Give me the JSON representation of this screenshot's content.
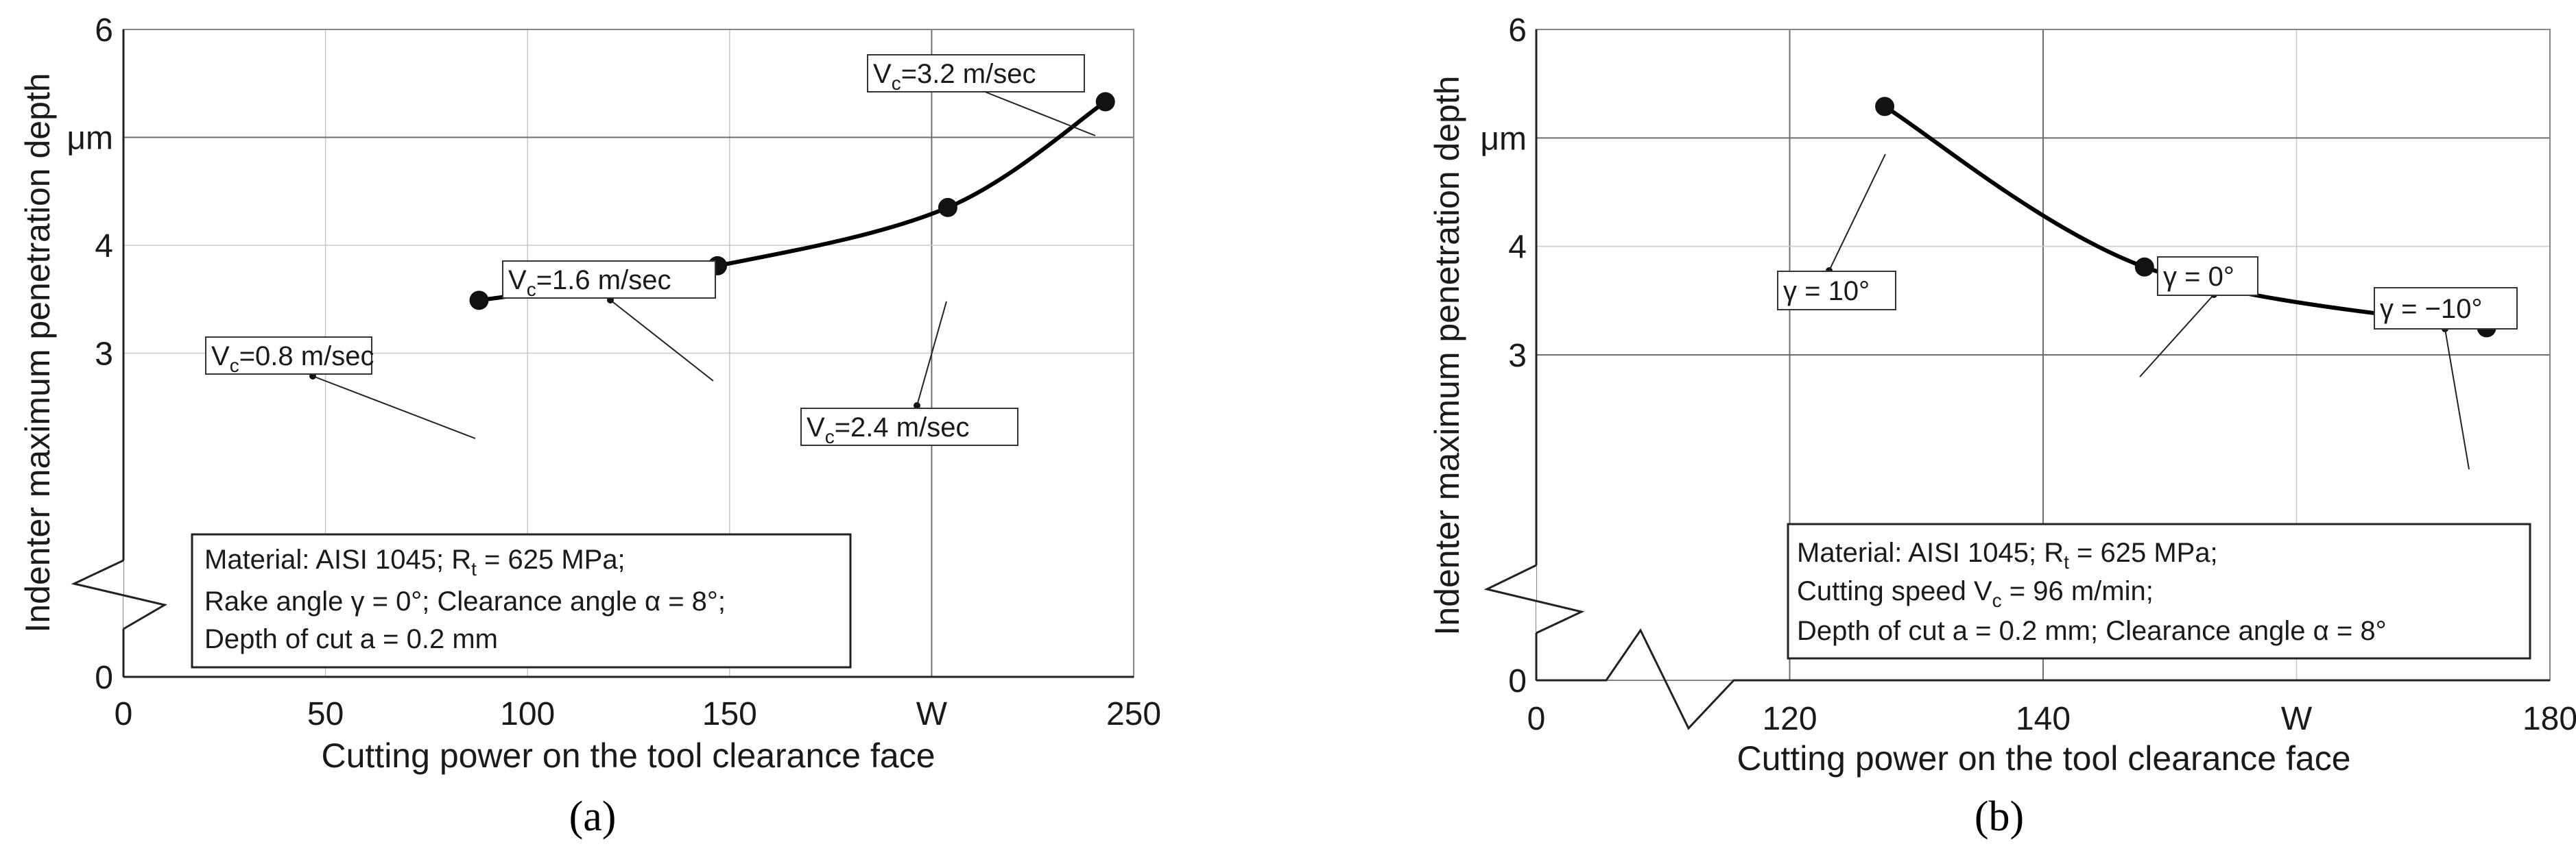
{
  "chart_data": [
    {
      "panel": "a",
      "type": "line",
      "caption": "(a)",
      "xlabel": "Cutting power on the tool clearance face",
      "xlabel_unit": "W",
      "ylabel": "Indenter maximum penetration depth",
      "ylabel_unit": "μm",
      "xlim": [
        0,
        250
      ],
      "ylim": [
        0,
        6
      ],
      "axis_break": true,
      "x_ticks": [
        "0",
        "50",
        "100",
        "150",
        "W",
        "250"
      ],
      "x_tick_values": [
        0,
        50,
        100,
        150,
        200,
        250
      ],
      "y_ticks": [
        "0",
        "3",
        "4",
        "μm",
        "6"
      ],
      "y_tick_values": [
        0,
        3,
        4,
        5,
        6
      ],
      "series": [
        {
          "name": "Vc",
          "x": [
            88,
            147,
            204,
            243
          ],
          "y": [
            3.49,
            3.81,
            4.35,
            5.33
          ]
        }
      ],
      "annotations": [
        {
          "text": "V",
          "sub": "c",
          "rest": "=0.8 m/sec"
        },
        {
          "text": "V",
          "sub": "c",
          "rest": "=1.6 m/sec"
        },
        {
          "text": "V",
          "sub": "c",
          "rest": "=2.4 m/sec"
        },
        {
          "text": "V",
          "sub": "c",
          "rest": "=3.2 m/sec"
        }
      ],
      "info": [
        {
          "pre": "Material: AISI 1045; R",
          "sub": "t",
          "post": " = 625 MPa;"
        },
        {
          "pre": "Rake angle γ = 0°; Clearance angle α = 8°;",
          "sub": "",
          "post": ""
        },
        {
          "pre": "Depth of cut a = 0.2 mm",
          "sub": "",
          "post": ""
        }
      ]
    },
    {
      "panel": "b",
      "type": "line",
      "caption": "(b)",
      "xlabel": "Cutting power on the tool clearance face",
      "xlabel_unit": "W",
      "ylabel": "Indenter maximum penetration depth",
      "ylabel_unit": "μm",
      "xlim": [
        100,
        180
      ],
      "ylim": [
        0,
        6
      ],
      "axis_break": true,
      "x_ticks": [
        "0",
        "120",
        "140",
        "W",
        "180"
      ],
      "x_tick_values": [
        100,
        120,
        140,
        160,
        180
      ],
      "y_ticks": [
        "0",
        "3",
        "4",
        "μm",
        "6"
      ],
      "y_tick_values": [
        0,
        3,
        4,
        5,
        6
      ],
      "series": [
        {
          "name": "γ",
          "x": [
            127.5,
            148,
            175
          ],
          "y": [
            5.29,
            3.81,
            3.25
          ]
        }
      ],
      "annotations": [
        {
          "text": "γ = 10°"
        },
        {
          "text": "γ = 0°"
        },
        {
          "text": "γ = −10°"
        }
      ],
      "info": [
        {
          "pre": "Material: AISI 1045; R",
          "sub": "t",
          "post": " = 625 MPa;"
        },
        {
          "pre": "Cutting speed V",
          "sub": "c",
          "post": " = 96 m/min;"
        },
        {
          "pre": "Depth of cut a = 0.2 mm; Clearance angle α = 8°",
          "sub": "",
          "post": ""
        }
      ]
    }
  ]
}
